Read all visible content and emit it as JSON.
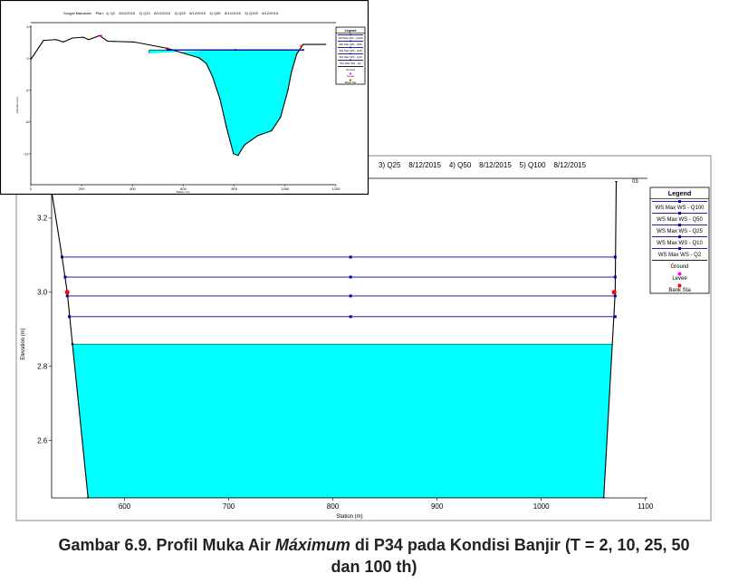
{
  "chart_data": [
    {
      "type": "line",
      "title": "3) Q25    8/12/2015    4) Q50    8/12/2015    5) Q100    8/12/2015",
      "annotation": "03",
      "xlabel": "Station (m)",
      "ylabel": "Elevation (m)",
      "xlim": [
        530,
        1102
      ],
      "ylim": [
        2.445,
        3.3
      ],
      "xticks": [
        600,
        700,
        800,
        900,
        1000,
        1100
      ],
      "yticks": [
        2.6,
        2.8,
        {
          "value": 3,
          "label": "3.0"
        },
        3.2
      ],
      "legend_title": "Legend",
      "series": [
        {
          "name": "WS Max WS - Q100",
          "color": "#0000a0",
          "style": "line",
          "marker": "square",
          "x": [
            540,
            817,
            1071
          ],
          "values": [
            3.095,
            3.095,
            3.095
          ]
        },
        {
          "name": "WS Max WS - Q50",
          "color": "#0000a0",
          "style": "line",
          "marker": "square",
          "x": [
            543,
            817,
            1071
          ],
          "values": [
            3.041,
            3.041,
            3.041
          ]
        },
        {
          "name": "WS Max WS - Q25",
          "color": "#0000a0",
          "style": "line",
          "marker": "square",
          "x": [
            545,
            817,
            1071
          ],
          "values": [
            2.99,
            2.99,
            2.99
          ]
        },
        {
          "name": "WS Max WS - Q10",
          "color": "#0000a0",
          "style": "line",
          "marker": "square",
          "x": [
            547,
            817,
            1071
          ],
          "values": [
            2.934,
            2.934,
            2.934
          ]
        },
        {
          "name": "WS Max WS - Q2",
          "color": "#00ffff",
          "style": "area",
          "x": [
            550,
            1070
          ],
          "values": [
            2.86,
            2.86
          ]
        },
        {
          "name": "Ground",
          "color": "#000000",
          "style": "ground",
          "x": [
            530,
            540,
            545,
            550,
            565,
            1060,
            1071,
            1072
          ],
          "values": [
            3.273,
            3.095,
            3.0,
            2.86,
            2.445,
            2.445,
            3.0,
            3.3
          ]
        },
        {
          "name": "Levee",
          "color": "#ff00ff",
          "style": "points",
          "x": [],
          "values": []
        },
        {
          "name": "Bank Sta",
          "color": "#ff0000",
          "style": "points",
          "x": [
            545,
            1070
          ],
          "values": [
            3.0,
            3.0
          ]
        }
      ]
    },
    {
      "type": "line",
      "title": "Sungai Mahakam    Plan:  1) Q2    8/12/2015    2) Q10    8/12/2015    3) Q25    8/12/2015    4) Q50    8/12/2015    5) Q100    8/12/2015",
      "xlabel": "Station (m)",
      "ylabel": "Elevation (m)",
      "xlim": [
        0,
        1200
      ],
      "ylim": [
        -15.9,
        4.2
      ],
      "xticks": [
        0,
        200,
        400,
        600,
        800,
        1000,
        1200
      ],
      "yticks": [
        -12,
        -8,
        -4,
        0,
        4
      ],
      "legend_title": "Legend",
      "series": [
        {
          "name": "WS Max WS - Q100",
          "color": "#0000a0",
          "style": "line",
          "marker": "square",
          "x": [
            537,
            804,
            1071
          ],
          "values": [
            1.1,
            1.1,
            1.1
          ]
        },
        {
          "name": "WS Max WS - Q50",
          "color": "#0000a0",
          "style": "line",
          "marker": "square",
          "x": [
            537,
            804,
            1071
          ],
          "values": [
            1.1,
            1.1,
            1.1
          ]
        },
        {
          "name": "WS Max WS - Q25",
          "color": "#0000a0",
          "style": "line",
          "marker": "square",
          "x": [
            537,
            804,
            1071
          ],
          "values": [
            1.1,
            1.1,
            1.1
          ]
        },
        {
          "name": "WS Max WS - Q10",
          "color": "#0000a0",
          "style": "line",
          "marker": "square",
          "x": [
            537,
            804,
            1071
          ],
          "values": [
            1.1,
            1.1,
            1.1
          ]
        },
        {
          "name": "WS Max WS - Q2",
          "color": "#00ffff",
          "style": "area",
          "x": [
            537,
            1071
          ],
          "values": [
            1.1,
            1.1
          ]
        },
        {
          "name": "Ground",
          "color": "#000000",
          "style": "ground",
          "x": [
            0,
            50,
            100,
            128,
            164,
            206,
            228,
            270,
            302,
            406,
            537,
            609,
            662,
            690,
            715,
            744,
            769,
            797,
            815,
            840,
            893,
            947,
            982,
            1011,
            1025,
            1046,
            1071,
            1107,
            1160
          ],
          "values": [
            -0.1,
            2.3,
            2.4,
            2.1,
            2.6,
            2.7,
            2.4,
            2.9,
            2.2,
            2.1,
            1.3,
            0.6,
            0.1,
            -0.6,
            -2.3,
            -5.1,
            -8.6,
            -12.0,
            -12.2,
            -10.9,
            -9.7,
            -9.1,
            -7.4,
            -4.0,
            -1.7,
            0.6,
            1.8,
            1.8,
            1.8
          ]
        },
        {
          "name": "Levee",
          "color": "#ff00ff",
          "style": "points",
          "x": [
            277
          ],
          "values": [
            2.86
          ]
        },
        {
          "name": "Bank Sta",
          "color": "#ff0000",
          "style": "points",
          "x": [
            534,
            1064
          ],
          "values": [
            1.3,
            1.6
          ]
        }
      ]
    }
  ],
  "caption": [
    "Gambar 6.9. Profil Muka Air ",
    "Máximum",
    " di P34 pada Kondisi Banjir (T = 2, 10, 25, 50",
    "dan 100 th)"
  ]
}
